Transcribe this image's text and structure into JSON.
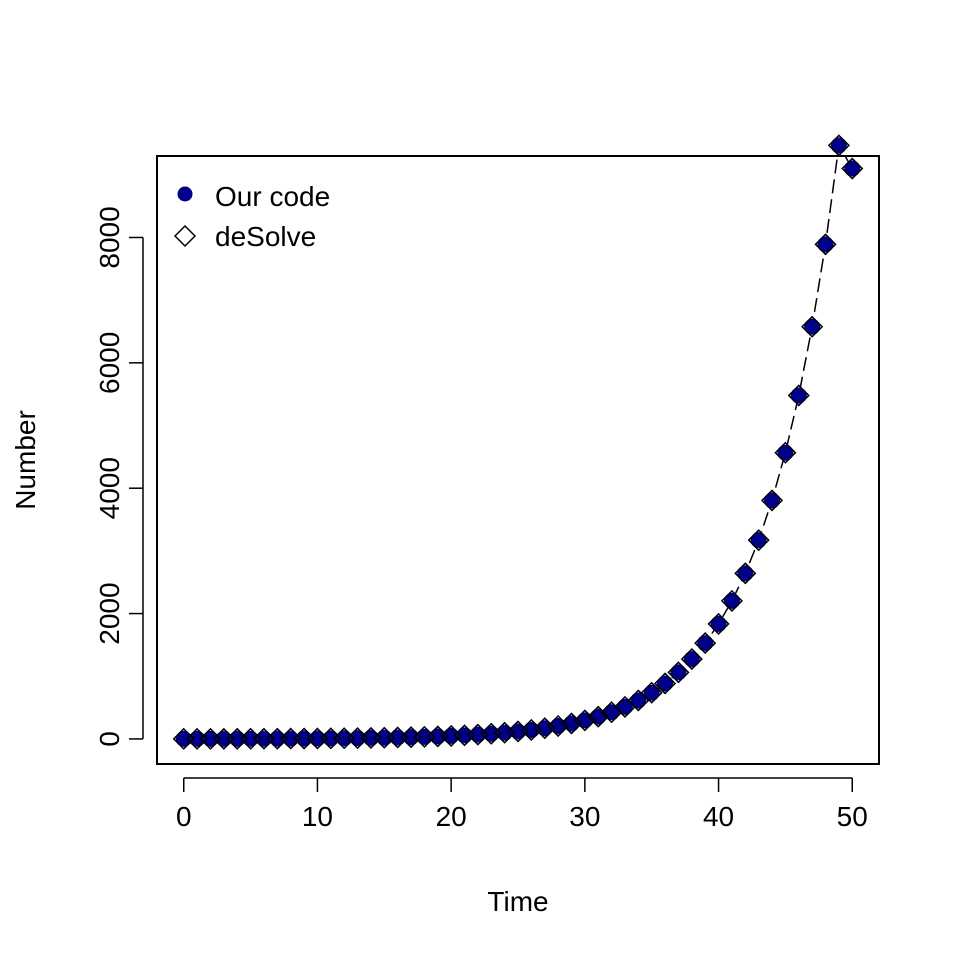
{
  "chart_data": {
    "type": "scatter",
    "title": "",
    "xlabel": "Time",
    "ylabel": "Number",
    "xlim": [
      -2,
      52
    ],
    "ylim": [
      -400,
      9300
    ],
    "xticks": [
      0,
      10,
      20,
      30,
      40,
      50
    ],
    "yticks": [
      0,
      2000,
      4000,
      6000,
      8000
    ],
    "grid": false,
    "legend_position": "top-left",
    "x": [
      0,
      1,
      2,
      3,
      4,
      5,
      6,
      7,
      8,
      9,
      10,
      11,
      12,
      13,
      14,
      15,
      16,
      17,
      18,
      19,
      20,
      21,
      22,
      23,
      24,
      25,
      26,
      27,
      28,
      29,
      30,
      31,
      32,
      33,
      34,
      35,
      36,
      37,
      38,
      39,
      40,
      41,
      42,
      43,
      44,
      45,
      46,
      47,
      48,
      49,
      50
    ],
    "series": [
      {
        "name": "Our code",
        "marker": "filled-circle",
        "color": "#00008B",
        "values": [
          1,
          1,
          1,
          2,
          2,
          3,
          3,
          4,
          5,
          6,
          7,
          9,
          11,
          13,
          16,
          19,
          23,
          28,
          33,
          40,
          48,
          57,
          69,
          83,
          99,
          119,
          143,
          171,
          206,
          247,
          296,
          355,
          426,
          511,
          614,
          737,
          885,
          1062,
          1274,
          1529,
          1835,
          2202,
          2642,
          3171,
          3805,
          4566,
          5480,
          6576,
          7891,
          9469,
          9100
        ]
      },
      {
        "name": "deSolve",
        "marker": "open-diamond",
        "color": "#000000",
        "values": [
          1,
          1,
          1,
          2,
          2,
          3,
          3,
          4,
          5,
          6,
          7,
          9,
          11,
          13,
          16,
          19,
          23,
          28,
          33,
          40,
          48,
          57,
          69,
          83,
          99,
          119,
          143,
          171,
          206,
          247,
          296,
          355,
          426,
          511,
          614,
          737,
          885,
          1062,
          1274,
          1529,
          1835,
          2202,
          2642,
          3171,
          3805,
          4566,
          5480,
          6576,
          7891,
          9469,
          9100
        ]
      }
    ]
  }
}
